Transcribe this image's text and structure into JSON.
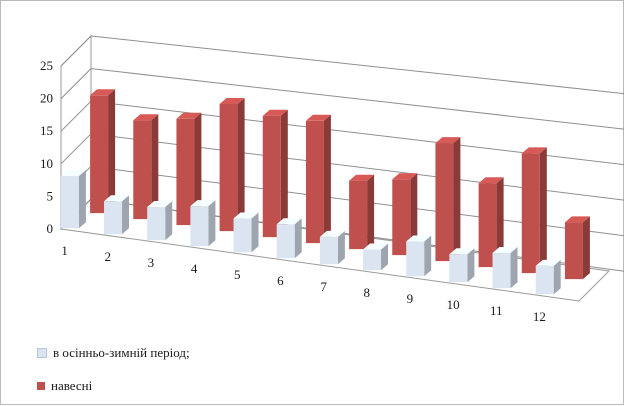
{
  "chart_data": {
    "type": "bar",
    "categories": [
      "1",
      "2",
      "3",
      "4",
      "5",
      "6",
      "7",
      "8",
      "9",
      "10",
      "11",
      "12"
    ],
    "series": [
      {
        "name": "в осінньо-зимній період;",
        "color": "#dbe5f1",
        "values": [
          8,
          5,
          5,
          6,
          5,
          5,
          4,
          3,
          5,
          4,
          5,
          4
        ]
      },
      {
        "name": "навесні",
        "color": "#c0504d",
        "values": [
          18,
          15,
          16,
          19,
          18,
          18,
          10,
          11,
          17,
          12,
          17,
          8
        ]
      }
    ],
    "y_ticks": [
      0,
      5,
      10,
      15,
      20,
      25
    ],
    "ylim": [
      0,
      25
    ],
    "grid": true,
    "legend_placement": "bottom-left"
  }
}
